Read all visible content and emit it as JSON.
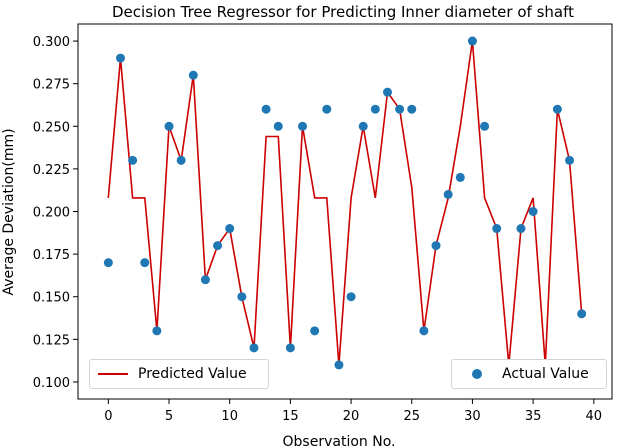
{
  "chart_data": {
    "type": "scatter",
    "title": "Decision Tree Regressor for Predicting Inner diameter of shaft",
    "xlabel": "Observation No.",
    "ylabel": "Average Deviation(mm)",
    "xlim": [
      -2.5,
      41.5
    ],
    "ylim": [
      0.09,
      0.31
    ],
    "x_ticks": [
      "0",
      "5",
      "10",
      "15",
      "20",
      "25",
      "30",
      "35",
      "40"
    ],
    "y_ticks": [
      "0.100",
      "0.125",
      "0.150",
      "0.175",
      "0.200",
      "0.225",
      "0.250",
      "0.275",
      "0.300"
    ],
    "grid": false,
    "legend": [
      {
        "label": "Predicted Value",
        "placement": "lower-left"
      },
      {
        "label": "Actual Value",
        "placement": "lower-right"
      }
    ],
    "x": [
      0,
      1,
      2,
      3,
      4,
      5,
      6,
      7,
      8,
      9,
      10,
      11,
      12,
      13,
      14,
      15,
      16,
      17,
      18,
      19,
      20,
      21,
      22,
      23,
      24,
      25,
      26,
      27,
      28,
      29,
      30,
      31,
      32,
      33,
      34,
      35,
      36,
      37,
      38,
      39
    ],
    "series": [
      {
        "name": "Predicted Value",
        "kind": "line",
        "color": "#cc0000",
        "values": [
          0.208,
          0.29,
          0.208,
          0.208,
          0.13,
          0.25,
          0.23,
          0.28,
          0.16,
          0.18,
          0.19,
          0.15,
          0.12,
          0.244,
          0.244,
          0.12,
          0.25,
          0.208,
          0.208,
          0.11,
          0.208,
          0.25,
          0.208,
          0.27,
          0.26,
          0.214,
          0.13,
          0.18,
          0.208,
          0.25,
          0.3,
          0.208,
          0.19,
          0.11,
          0.19,
          0.208,
          0.11,
          0.26,
          0.23,
          0.14
        ]
      },
      {
        "name": "Actual Value",
        "kind": "scatter",
        "color": "#1f77b4",
        "values": [
          0.17,
          0.29,
          0.23,
          0.17,
          0.13,
          0.25,
          0.23,
          0.28,
          0.16,
          0.18,
          0.19,
          0.15,
          0.12,
          0.26,
          0.25,
          0.12,
          0.25,
          0.13,
          0.26,
          0.11,
          0.15,
          0.25,
          0.26,
          0.27,
          0.26,
          0.26,
          0.13,
          0.18,
          0.21,
          0.22,
          0.3,
          0.25,
          0.19,
          0.11,
          0.19,
          0.2,
          0.11,
          0.26,
          0.23,
          0.14
        ]
      }
    ]
  }
}
